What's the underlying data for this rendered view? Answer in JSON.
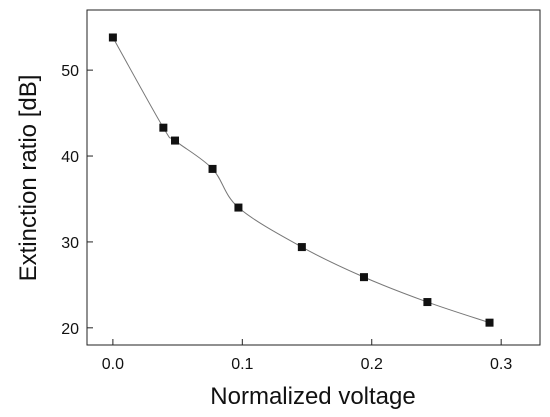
{
  "chart_data": {
    "type": "line",
    "title": "",
    "xlabel": "Normalized voltage",
    "ylabel": "Extinction ratio [dB]",
    "xlim": [
      -0.02,
      0.33
    ],
    "ylim": [
      18,
      57
    ],
    "xticks": [
      0.0,
      0.1,
      0.2,
      0.3
    ],
    "xtick_labels": [
      "0.0",
      "0.1",
      "0.2",
      "0.3"
    ],
    "yticks": [
      20,
      30,
      40,
      50
    ],
    "ytick_labels": [
      "20",
      "30",
      "40",
      "50"
    ],
    "grid": false,
    "legend": "none",
    "series": [
      {
        "marker": "square",
        "line_color": "#777777",
        "marker_color": "#111111",
        "x": [
          0.0,
          0.039,
          0.048,
          0.077,
          0.097,
          0.146,
          0.194,
          0.243,
          0.291
        ],
        "y": [
          53.8,
          43.3,
          41.8,
          38.5,
          34.0,
          29.4,
          25.9,
          23.0,
          20.6
        ]
      }
    ]
  }
}
